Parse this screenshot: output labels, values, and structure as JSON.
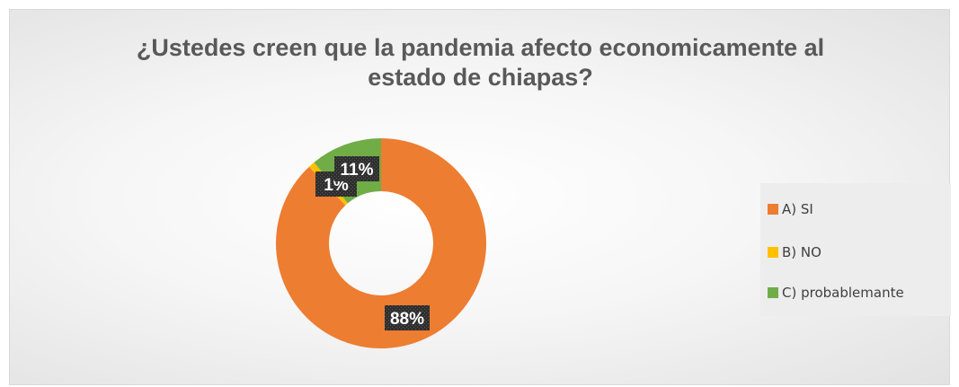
{
  "chart_data": {
    "type": "pie",
    "variant": "donut",
    "title_lines": [
      "¿Ustedes creen que la pandemia afecto economicamente al",
      "estado de chiapas?"
    ],
    "categories": [
      "A)  SI",
      "B)  NO",
      "C) probablemante"
    ],
    "values": [
      88,
      1,
      11
    ],
    "data_labels": [
      "88%",
      "1%",
      "11%"
    ],
    "unit": "%",
    "legend_position": "right",
    "colors": [
      "#ed7d31",
      "#ffc000",
      "#70ad47"
    ],
    "data_label_style": {
      "background": "#333333",
      "text_color": "#ffffff"
    }
  }
}
